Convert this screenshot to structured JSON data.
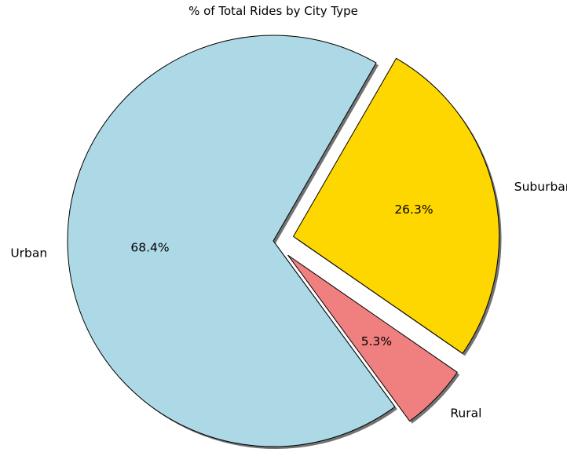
{
  "chart_data": {
    "type": "pie",
    "title": "% of Total Rides by City Type",
    "slices": [
      {
        "label": "Urban",
        "value": 68.4,
        "pct_label": "68.4%",
        "color": "#add8e6",
        "exploded": false
      },
      {
        "label": "Rural",
        "value": 5.3,
        "pct_label": "5.3%",
        "color": "#f08080",
        "exploded": true
      },
      {
        "label": "Suburban",
        "value": 26.3,
        "pct_label": "26.3%",
        "color": "#ffd700",
        "exploded": true
      }
    ],
    "shadow": true,
    "edgecolor": "#000000"
  }
}
